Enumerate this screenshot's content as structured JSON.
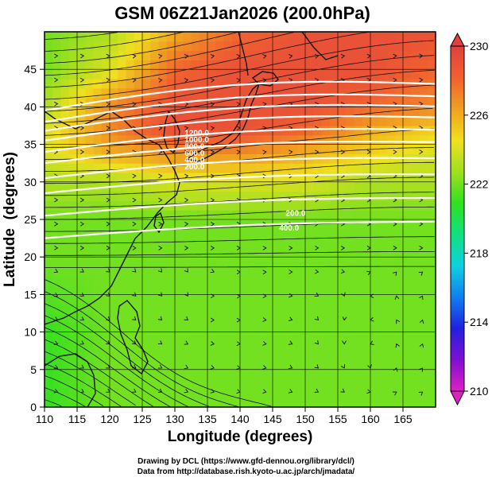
{
  "chart_data": {
    "type": "heatmap",
    "title": "GSM 06Z21Jan2026 (200.0hPa)",
    "xlabel": "Longitude (degrees)",
    "ylabel": "Latitude  (degrees)",
    "xlim": [
      110,
      170
    ],
    "ylim": [
      0,
      50
    ],
    "xticks": [
      110,
      115,
      120,
      125,
      130,
      135,
      140,
      145,
      150,
      155,
      160,
      165
    ],
    "yticks": [
      0,
      5,
      10,
      15,
      20,
      25,
      30,
      35,
      40,
      45
    ],
    "grid": true,
    "colorbar": {
      "min": 210,
      "max": 230,
      "ticks": [
        210,
        214,
        218,
        222,
        226,
        230
      ],
      "colors": [
        "#e020c0",
        "#8010d0",
        "#2020e0",
        "#1080f0",
        "#10d0e0",
        "#10e080",
        "#30e020",
        "#a0e020",
        "#f0e020",
        "#f0a020",
        "#f06030",
        "#e04040"
      ]
    },
    "isotach_labels": [
      "1200.0",
      "1000.0",
      "800.0",
      "600.0",
      "400.0",
      "200.0"
    ],
    "wind_contour_lats": [
      22.5,
      25.5,
      28.5,
      30.5,
      32.5,
      34.0,
      35.5,
      36.8,
      38.0,
      39.5
    ],
    "temperature_field": {
      "lats": [
        0,
        10,
        20,
        25,
        30,
        34,
        37,
        40,
        45,
        50
      ],
      "lons": [
        110,
        120,
        130,
        140,
        150,
        160,
        170
      ],
      "values": [
        [
          221,
          222,
          222,
          222,
          222,
          222,
          222
        ],
        [
          221,
          222,
          222,
          222,
          222,
          222,
          222
        ],
        [
          222,
          222,
          222,
          222,
          222,
          222,
          222
        ],
        [
          222,
          222,
          222,
          222,
          222,
          222,
          222
        ],
        [
          223,
          223,
          224,
          224,
          224,
          223,
          223
        ],
        [
          224,
          226,
          227,
          227,
          226,
          225,
          224
        ],
        [
          224,
          227,
          229,
          229,
          228,
          226,
          225
        ],
        [
          223,
          227,
          229,
          229,
          229,
          228,
          227
        ],
        [
          222,
          224,
          228,
          229,
          229,
          229,
          228
        ],
        [
          222,
          223,
          226,
          228,
          229,
          229,
          229
        ]
      ]
    }
  },
  "credits": {
    "drawing": "Drawing by DCL (https://www.gfd-dennou.org/library/dcl/)",
    "data": "Data from http://database.rish.kyoto-u.ac.jp/arch/jmadata/"
  }
}
